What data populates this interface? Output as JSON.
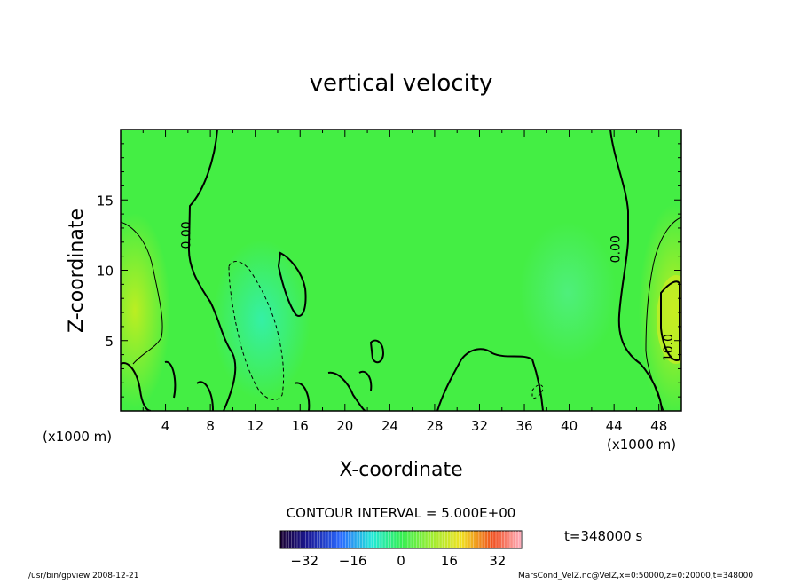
{
  "chart_data": {
    "type": "heatmap",
    "title": "vertical velocity",
    "xlabel": "X-coordinate",
    "ylabel": "Z-coordinate",
    "x_unit_left": "(x1000 m)",
    "x_unit_right": "(x1000 m)",
    "xlim": [
      0,
      50
    ],
    "ylim": [
      0,
      20
    ],
    "x_ticks": [
      4,
      8,
      12,
      16,
      20,
      24,
      28,
      32,
      36,
      40,
      44,
      48
    ],
    "y_ticks": [
      5,
      10,
      15
    ],
    "contour_interval_text": "CONTOUR INTERVAL = 5.000E+00",
    "contour_labels": [
      {
        "text": "0.00",
        "x": 6.2,
        "y": 12.5
      },
      {
        "text": "0.00",
        "x": 44.5,
        "y": 11.5
      },
      {
        "text": "10.0",
        "x": 49.2,
        "y": 4.5
      }
    ],
    "time_label": "t=348000 s",
    "colorbar": {
      "range": [
        -40,
        40
      ],
      "ticks": [
        -32,
        -16,
        0,
        16,
        32
      ]
    },
    "footer_left": "/usr/bin/gpview  2008-12-21",
    "footer_right": "MarsCond_VelZ.nc@VelZ,x=0:50000,z=0:20000,t=348000"
  }
}
